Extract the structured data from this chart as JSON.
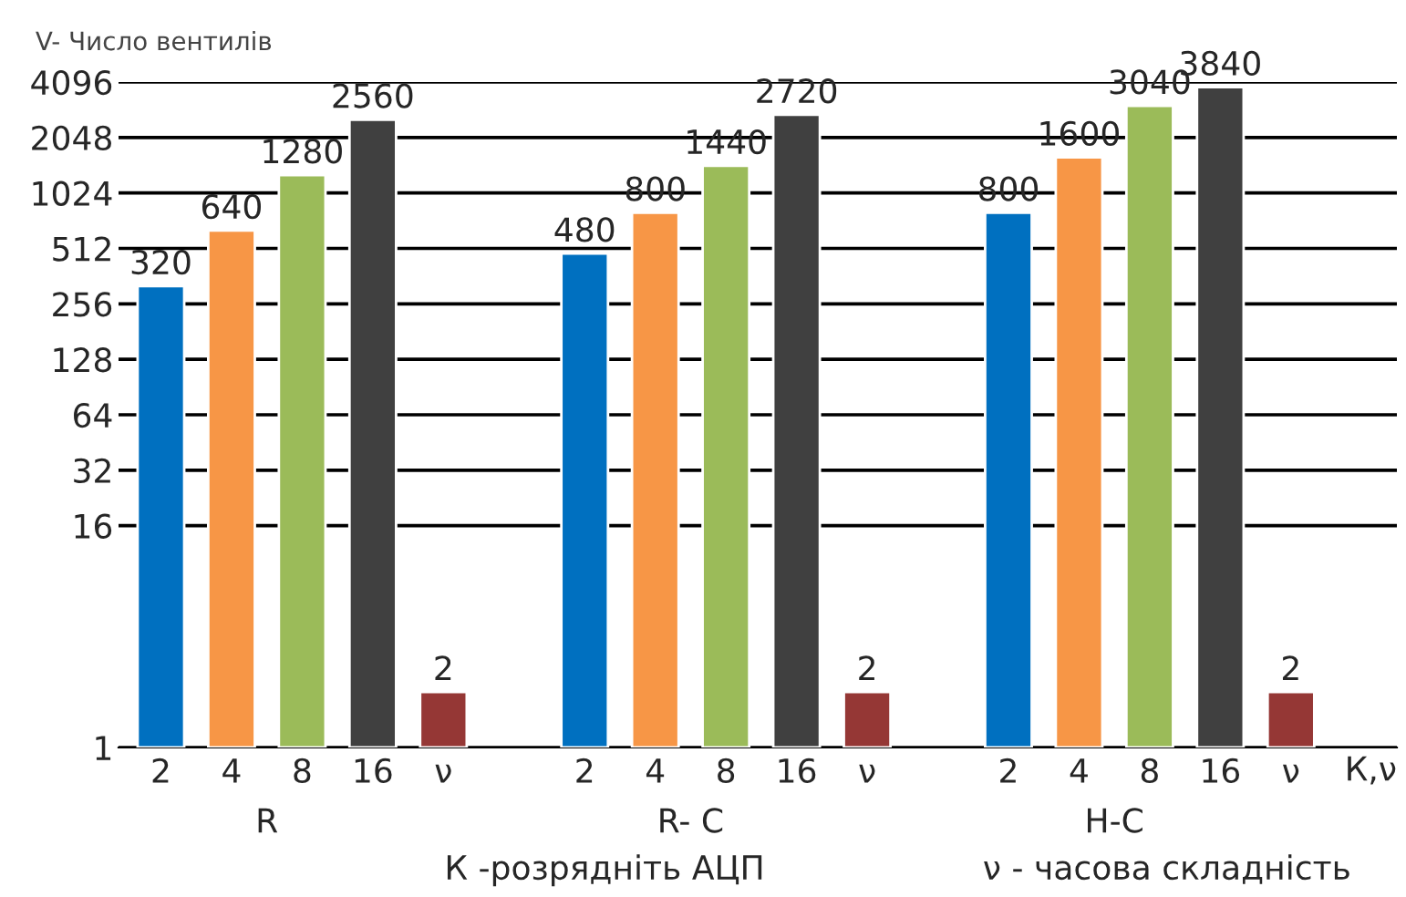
{
  "chart_data": {
    "type": "bar",
    "ylabel": "V- Число вентилів",
    "xlabel": "К,ν",
    "categories": [
      "2",
      "4",
      "8",
      "16",
      "ν",
      null,
      "2",
      "4",
      "8",
      "16",
      "ν",
      null,
      "2",
      "4",
      "8",
      "16",
      "ν"
    ],
    "values": [
      320,
      640,
      1280,
      2560,
      2,
      null,
      480,
      800,
      1440,
      2720,
      2,
      null,
      800,
      1600,
      3040,
      3840,
      2
    ],
    "colors": [
      "#0070c0",
      "#f79646",
      "#9bbb59",
      "#404040",
      "#953735",
      null,
      "#0070c0",
      "#f79646",
      "#9bbb59",
      "#404040",
      "#953735",
      null,
      "#0070c0",
      "#f79646",
      "#9bbb59",
      "#404040",
      "#953735"
    ],
    "ylim": [
      1,
      4096
    ],
    "yticks": [
      1,
      16,
      32,
      64,
      128,
      256,
      512,
      1024,
      2048,
      4096
    ],
    "grid": "y",
    "log": true,
    "data_labels": true,
    "annotations": [
      "R",
      "R- C",
      "Н-С",
      "К -розрядніть АЦП",
      "ν - часова складність"
    ]
  }
}
